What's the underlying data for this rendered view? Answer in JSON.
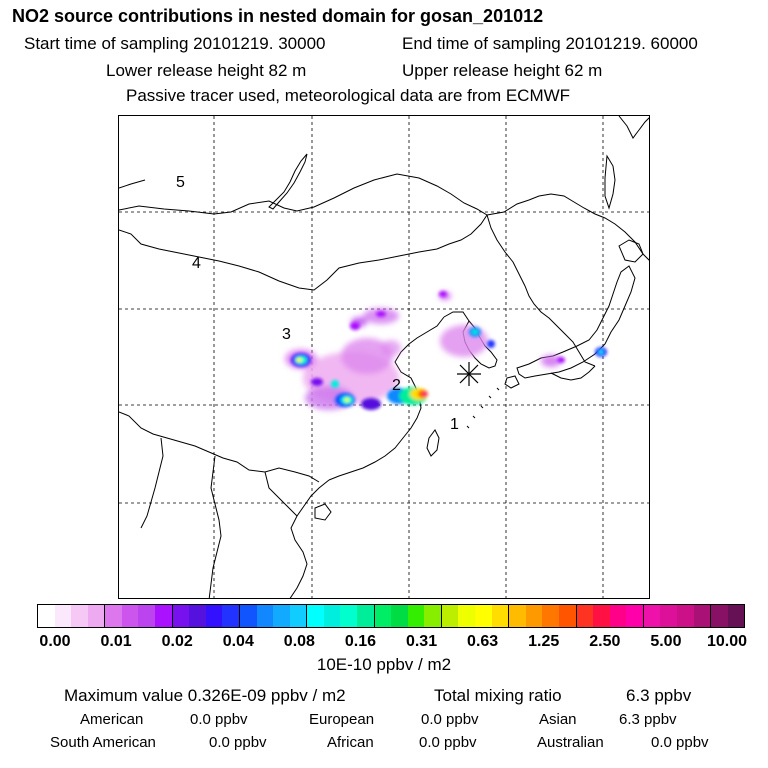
{
  "header": {
    "title": "NO2 source contributions in nested domain for gosan_201012",
    "start_time": "Start time of sampling 20101219. 30000",
    "end_time": "End time of sampling 20101219. 60000",
    "lower_height": "Lower release height   82 m",
    "upper_height": "Upper release height   62 m",
    "tracer_note": "Passive tracer used, meteorological data are from ECMWF"
  },
  "map": {
    "region_labels": [
      "1",
      "2",
      "3",
      "4",
      "5"
    ],
    "receptor_marker": "asterisk-receptor"
  },
  "colorbar": {
    "ticks": [
      "0.00",
      "0.01",
      "0.02",
      "0.04",
      "0.08",
      "0.16",
      "0.31",
      "0.63",
      "1.25",
      "2.50",
      "5.00",
      "10.00"
    ],
    "unit": "10E-10 ppbv / m2",
    "colors": [
      "#ffffff",
      "#fce8fc",
      "#f5c8f5",
      "#eeaaf0",
      "#dd77ee",
      "#cc55ee",
      "#bb44ee",
      "#aa11ff",
      "#7711ee",
      "#5511dd",
      "#3311ff",
      "#2233ff",
      "#1155ff",
      "#1188ff",
      "#11aaff",
      "#11ccff",
      "#00ffff",
      "#00eedd",
      "#00ffcc",
      "#00ee99",
      "#00ee66",
      "#00dd44",
      "#33ee00",
      "#88ee00",
      "#bbee00",
      "#eeff00",
      "#ffff00",
      "#ffdd00",
      "#ffbb00",
      "#ff9900",
      "#ff7700",
      "#ff5500",
      "#ff3322",
      "#ff1144",
      "#ff0088",
      "#ff00aa",
      "#ee11aa",
      "#dd1199",
      "#cc1188",
      "#aa1177",
      "#881166",
      "#661155"
    ]
  },
  "summary": {
    "maximum_label": "Maximum value  0.326E-09 ppbv / m2",
    "total_label": "Total mixing ratio",
    "total_value": "6.3 ppbv",
    "regions": [
      {
        "name": "American",
        "value": "0.0 ppbv"
      },
      {
        "name": "European",
        "value": "0.0 ppbv"
      },
      {
        "name": "Asian",
        "value": "6.3 ppbv"
      },
      {
        "name": "South American",
        "value": "0.0 ppbv"
      },
      {
        "name": "African",
        "value": "0.0 ppbv"
      },
      {
        "name": "Australian",
        "value": "0.0 ppbv"
      }
    ]
  }
}
